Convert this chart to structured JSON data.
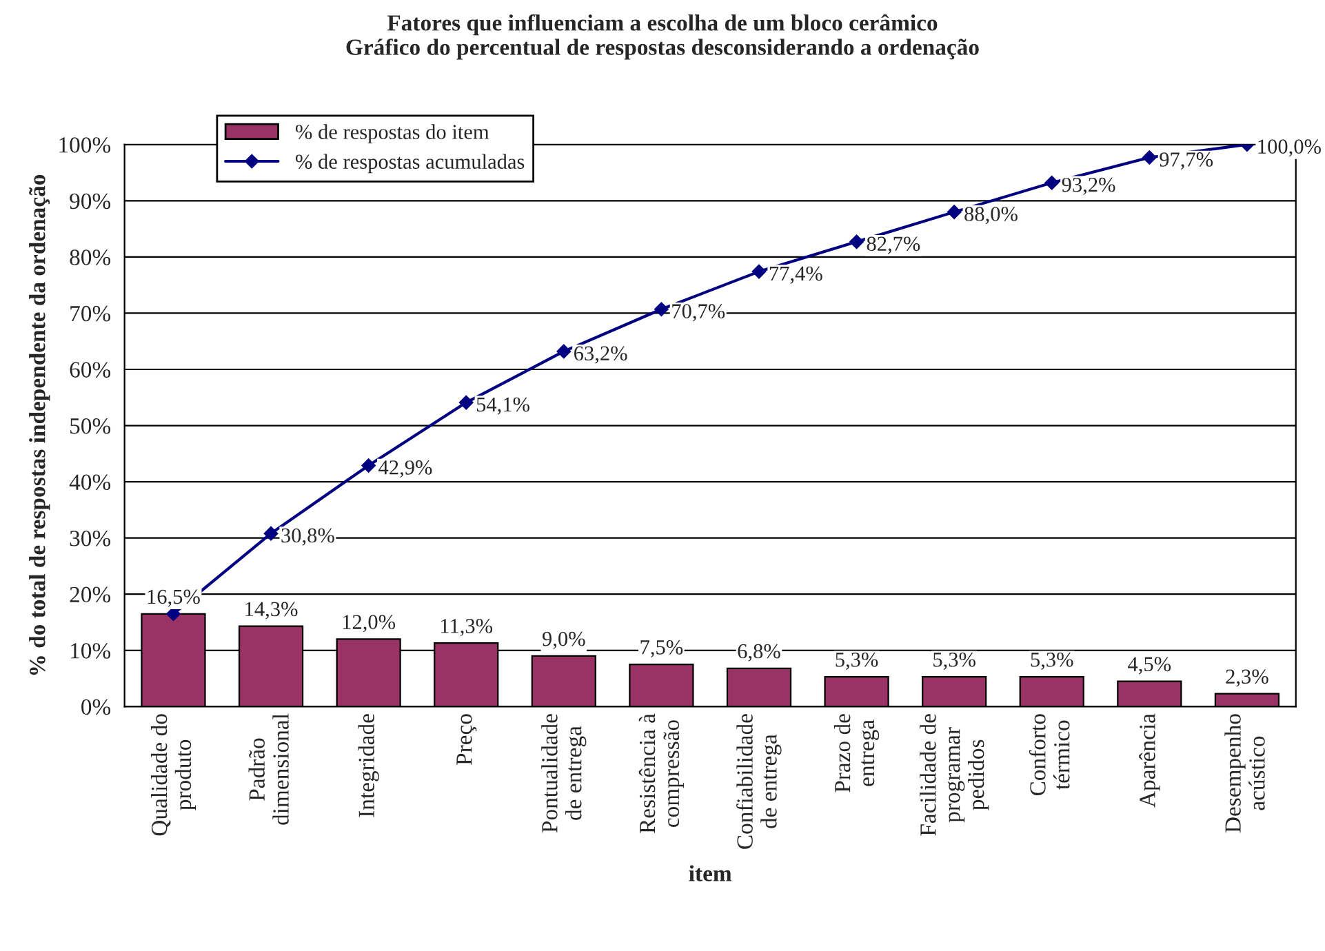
{
  "chart_data": {
    "type": "bar",
    "title": "Fatores que influenciam a escolha de um bloco cerâmico\nGráfico do percentual de respostas desconsiderando a ordenação",
    "xlabel": "item",
    "ylabel": "% do total de respostas independente da ordenação",
    "categories": [
      "Qualidade do\nproduto",
      "Padrão\ndimensional",
      "Integridade",
      "Preço",
      "Pontualidade\nde entrega",
      "Resistência à\ncompressão",
      "Confiabilidade\nde entrega",
      "Prazo de\nentrega",
      "Facilidade de\nprogramar\npedidos",
      "Conforto\ntérmico",
      "Aparência",
      "Desempenho\nacústico"
    ],
    "series": [
      {
        "name": "% de respostas do item",
        "color": "#993366",
        "values": [
          16.5,
          14.3,
          12.0,
          11.3,
          9.0,
          7.5,
          6.8,
          5.3,
          5.3,
          5.3,
          4.5,
          2.3
        ],
        "value_labels": [
          "16,5%",
          "14,3%",
          "12,0%",
          "11,3%",
          "9,0%",
          "7,5%",
          "6,8%",
          "5,3%",
          "5,3%",
          "5,3%",
          "4,5%",
          "2,3%"
        ]
      },
      {
        "name": "% de respostas acumuladas",
        "type": "line",
        "color": "#000080",
        "values": [
          16.5,
          30.8,
          42.9,
          54.1,
          63.2,
          70.7,
          77.4,
          82.7,
          88.0,
          93.2,
          97.7,
          100.0
        ],
        "value_labels": [
          null,
          "30,8%",
          "42,9%",
          "54,1%",
          "63,2%",
          "70,7%",
          "77,4%",
          "82,7%",
          "88,0%",
          "93,2%",
          "97,7%",
          "100,0%"
        ]
      }
    ],
    "ylim": [
      0,
      100
    ],
    "yticks": [
      {
        "value": 0,
        "label": "0%"
      },
      {
        "value": 10,
        "label": "10%"
      },
      {
        "value": 20,
        "label": "20%"
      },
      {
        "value": 30,
        "label": "30%"
      },
      {
        "value": 40,
        "label": "40%"
      },
      {
        "value": 50,
        "label": "50%"
      },
      {
        "value": 60,
        "label": "60%"
      },
      {
        "value": 70,
        "label": "70%"
      },
      {
        "value": 80,
        "label": "80%"
      },
      {
        "value": 90,
        "label": "90%"
      },
      {
        "value": 100,
        "label": "100%"
      }
    ],
    "grid": "y",
    "legend": "top left",
    "marker": "diamond",
    "line_style": "solid"
  }
}
